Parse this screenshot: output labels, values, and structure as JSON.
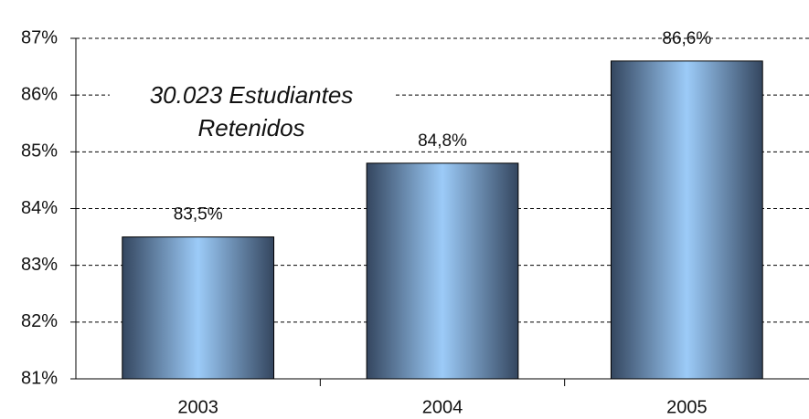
{
  "chart_data": {
    "type": "bar",
    "categories": [
      "2003",
      "2004",
      "2005"
    ],
    "values": [
      83.5,
      84.8,
      86.6
    ],
    "value_labels": [
      "83,5%",
      "84,8%",
      "86,6%"
    ],
    "annotation": [
      "30.023 Estudiantes",
      "Retenidos"
    ],
    "ylim": [
      81,
      87
    ],
    "yticks": [
      {
        "value": 81,
        "label": "81%"
      },
      {
        "value": 82,
        "label": "82%"
      },
      {
        "value": 83,
        "label": "83%"
      },
      {
        "value": 84,
        "label": "84%"
      },
      {
        "value": 85,
        "label": "85%"
      },
      {
        "value": 86,
        "label": "86%"
      },
      {
        "value": 87,
        "label": "87%"
      }
    ],
    "grid": true,
    "color": "#9ccbf8"
  }
}
